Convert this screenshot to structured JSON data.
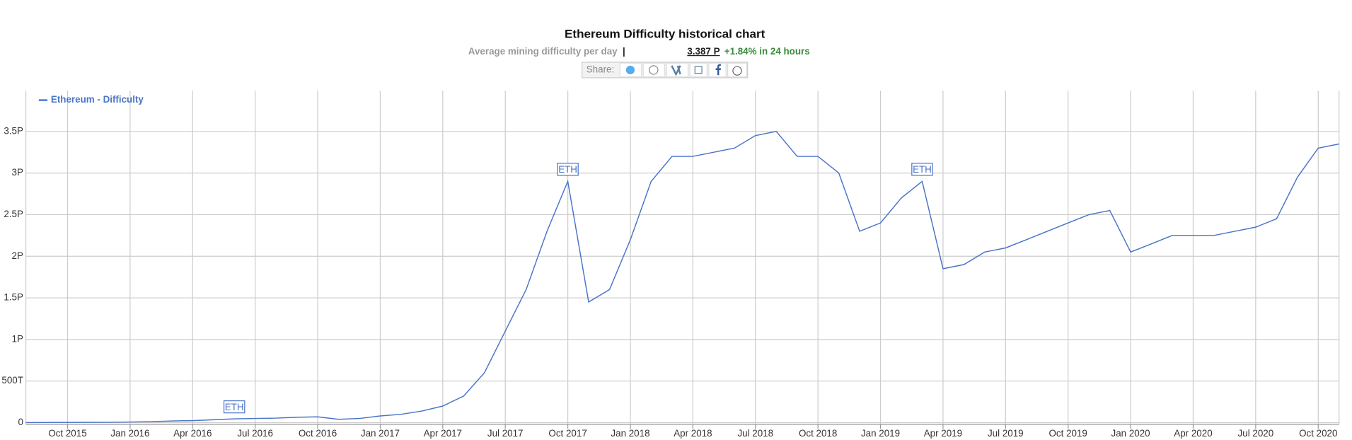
{
  "header": {
    "title": "Ethereum Difficulty historical chart",
    "subtitle": "Average mining difficulty per day",
    "current": "3.387 P",
    "change": "+1.84% in 24 hours",
    "share": "Share:"
  },
  "chart_data": {
    "type": "line",
    "x": [
      "Aug 2015",
      "Sep 2015",
      "Oct 2015",
      "Nov 2015",
      "Dec 2015",
      "Jan 2016",
      "Feb 2016",
      "Mar 2016",
      "Apr 2016",
      "May 2016",
      "Jun 2016",
      "Jul 2016",
      "Aug 2016",
      "Sep 2016",
      "Oct 2016",
      "Nov 2016",
      "Dec 2016",
      "Jan 2017",
      "Feb 2017",
      "Mar 2017",
      "Apr 2017",
      "May 2017",
      "Jun 2017",
      "Jul 2017",
      "Aug 2017",
      "Sep 2017",
      "Oct 2017",
      "Nov 2017",
      "Dec 2017",
      "Jan 2018",
      "Feb 2018",
      "Mar 2018",
      "Apr 2018",
      "May 2018",
      "Jun 2018",
      "Jul 2018",
      "Aug 2018",
      "Sep 2018",
      "Oct 2018",
      "Nov 2018",
      "Dec 2018",
      "Jan 2019",
      "Feb 2019",
      "Mar 2019",
      "Apr 2019",
      "May 2019",
      "Jun 2019",
      "Jul 2019",
      "Aug 2019",
      "Sep 2019",
      "Oct 2019",
      "Nov 2019",
      "Dec 2019",
      "Jan 2020",
      "Feb 2020",
      "Mar 2020",
      "Apr 2020",
      "May 2020",
      "Jun 2020",
      "Jul 2020",
      "Aug 2020",
      "Sep 2020",
      "Oct 2020",
      "Nov 2020"
    ],
    "series": [
      {
        "name": "Ethereum - Difficulty",
        "color": "#4a74c9",
        "values": [
          0.001,
          0.002,
          0.003,
          0.004,
          0.005,
          0.008,
          0.012,
          0.02,
          0.025,
          0.035,
          0.045,
          0.05,
          0.055,
          0.065,
          0.07,
          0.04,
          0.05,
          0.08,
          0.1,
          0.14,
          0.2,
          0.32,
          0.6,
          1.1,
          1.6,
          2.3,
          2.9,
          1.45,
          1.6,
          2.2,
          2.9,
          3.2,
          3.2,
          3.25,
          3.3,
          3.45,
          3.5,
          3.2,
          3.2,
          3.0,
          2.3,
          2.4,
          2.7,
          2.9,
          1.85,
          1.9,
          2.05,
          2.1,
          2.2,
          2.3,
          2.4,
          2.5,
          2.55,
          2.05,
          2.15,
          2.25,
          2.25,
          2.25,
          2.3,
          2.35,
          2.45,
          2.95,
          3.3,
          3.35
        ]
      }
    ],
    "xticks": [
      "Oct 2015",
      "Jan 2016",
      "Apr 2016",
      "Jul 2016",
      "Oct 2016",
      "Jan 2017",
      "Apr 2017",
      "Jul 2017",
      "Oct 2017",
      "Jan 2018",
      "Apr 2018",
      "Jul 2018",
      "Oct 2018",
      "Jan 2019",
      "Apr 2019",
      "Jul 2019",
      "Oct 2019",
      "Jan 2020",
      "Apr 2020",
      "Jul 2020",
      "Oct 2020"
    ],
    "ylim": [
      -0.02,
      3.99
    ],
    "yticks": [
      0,
      {
        "value": 0.5,
        "label": "500T"
      },
      {
        "value": 1,
        "label": "1P"
      },
      {
        "value": 1.5,
        "label": "1.5P"
      },
      {
        "value": 2,
        "label": "2P"
      },
      {
        "value": 2.5,
        "label": "2.5P"
      },
      {
        "value": 3,
        "label": "3P"
      },
      {
        "value": 3.5,
        "label": "3.5P"
      }
    ],
    "annotations": [
      {
        "text": "ETH",
        "x": "Jun 2016"
      },
      {
        "text": "ETH",
        "x": "Oct 2017"
      },
      {
        "text": "ETH",
        "x": "Mar 2019"
      }
    ],
    "grid": true,
    "legend": "top-left"
  }
}
